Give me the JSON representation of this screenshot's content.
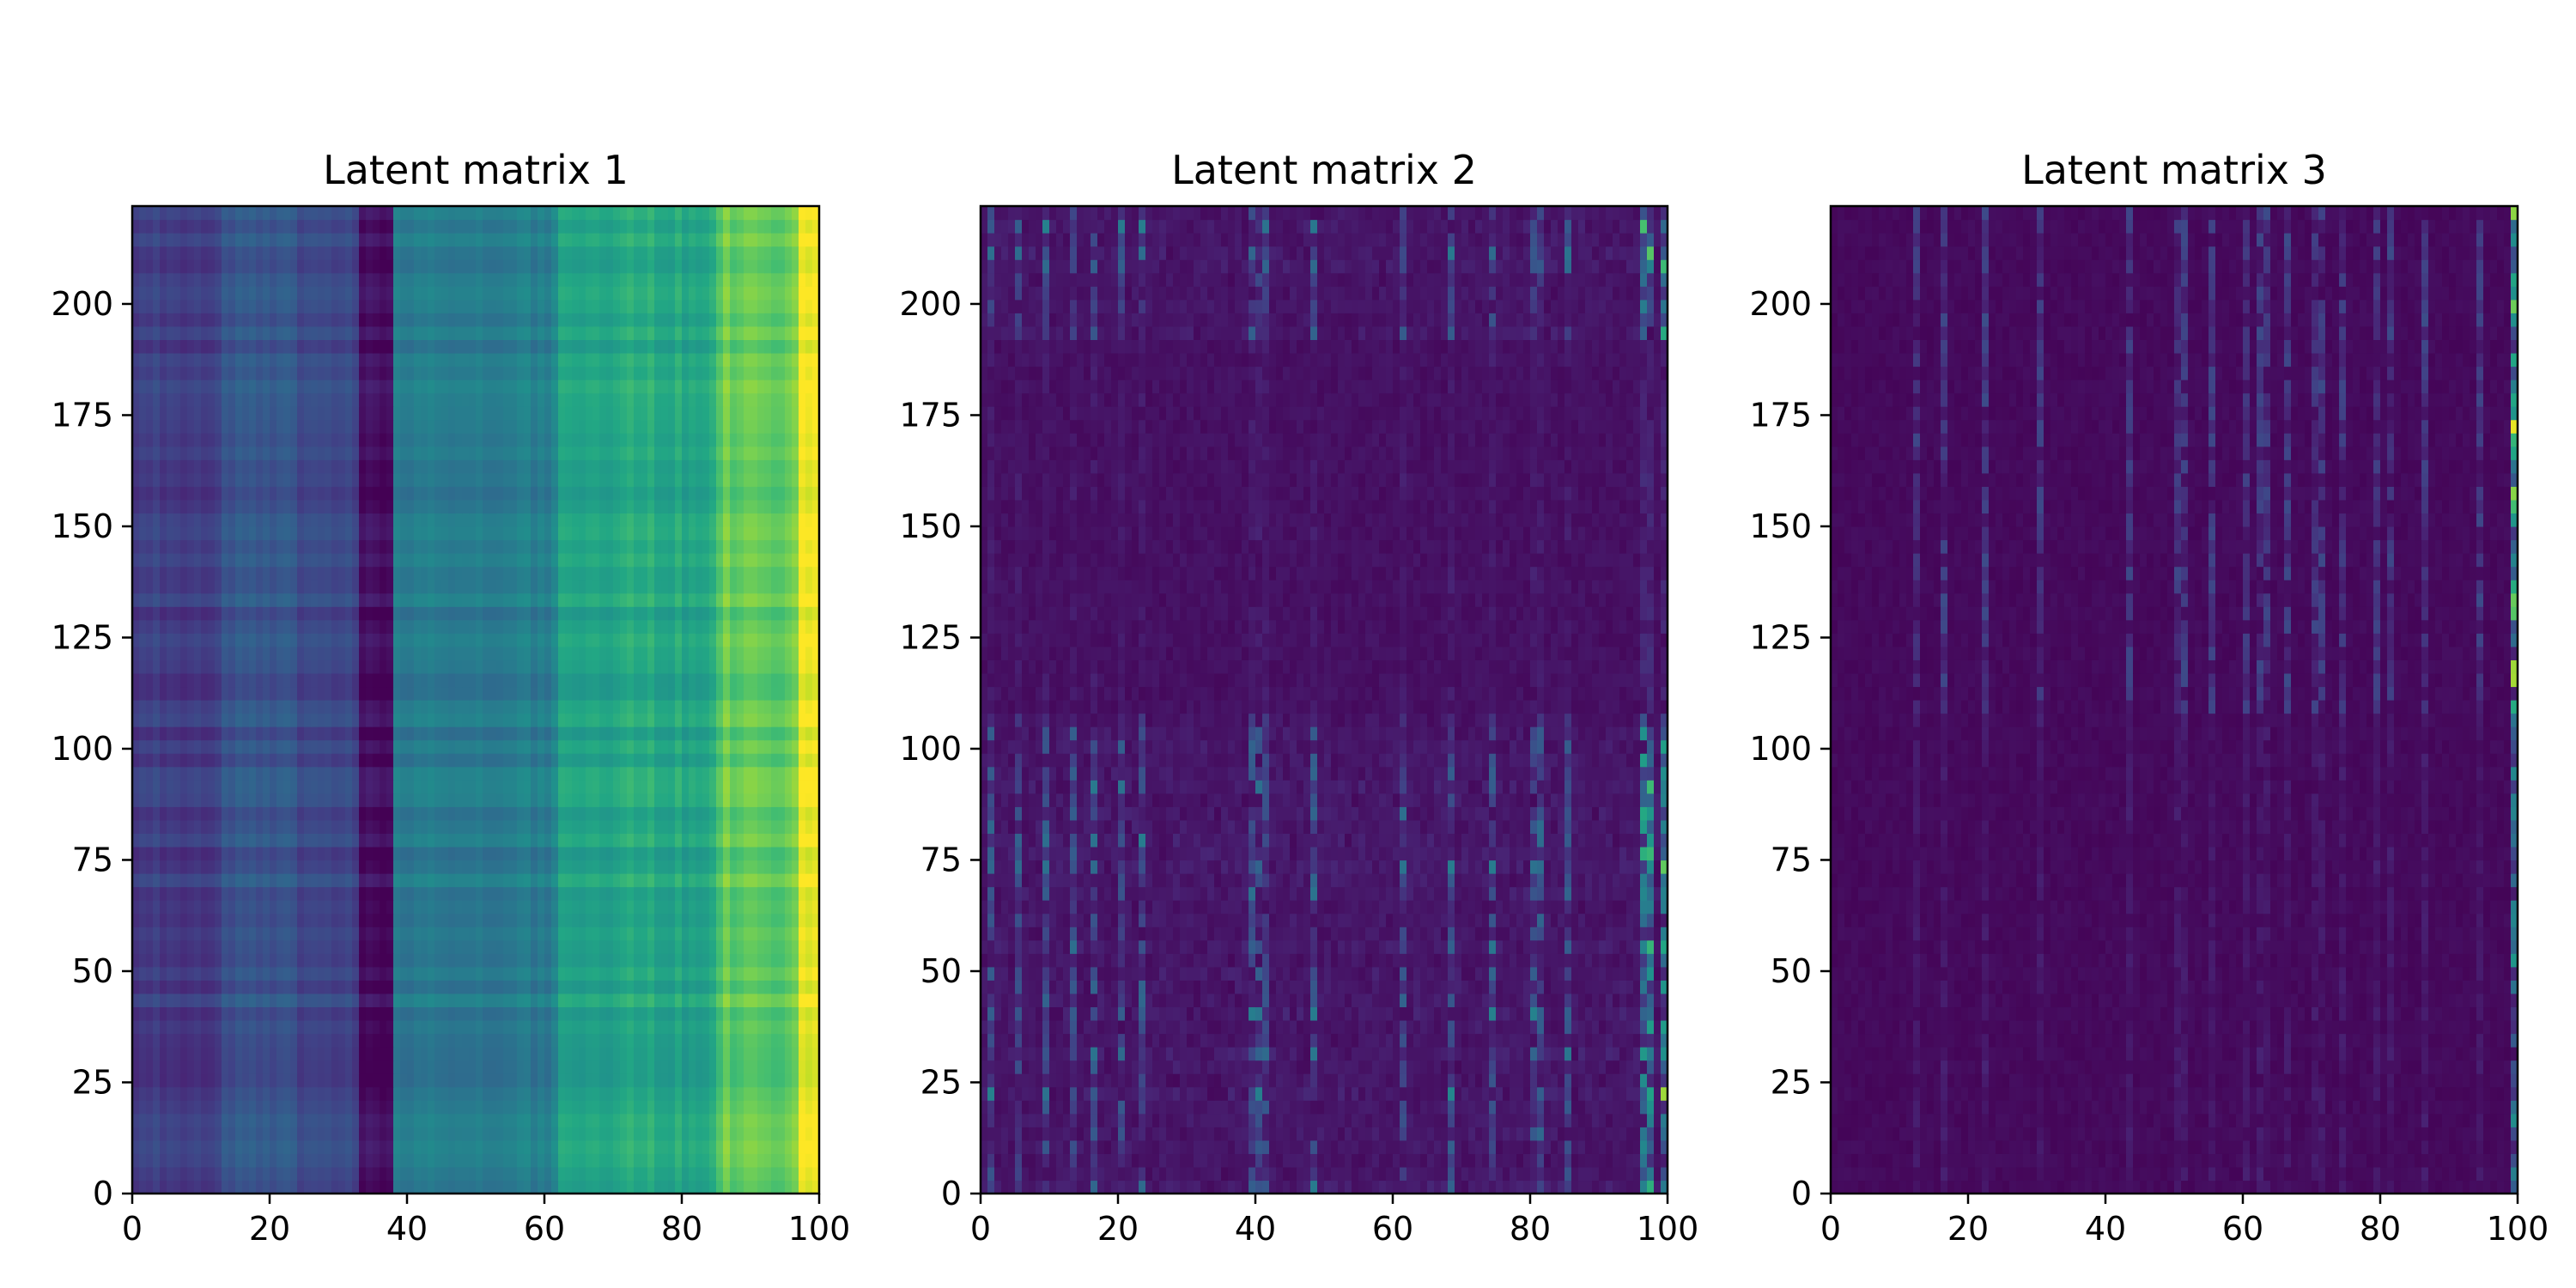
{
  "chart_data": [
    {
      "type": "heatmap",
      "title": "Latent matrix 1",
      "colormap": "viridis",
      "xlim": [
        0,
        100
      ],
      "ylim": [
        0,
        222
      ],
      "xticks": [
        0,
        20,
        40,
        60,
        80,
        100
      ],
      "yticks": [
        0,
        25,
        50,
        75,
        100,
        125,
        150,
        175,
        200
      ],
      "columns": 100,
      "rows": 222,
      "grid": false,
      "column_profile": [
        {
          "from": 0,
          "to": 13,
          "value": 0.18
        },
        {
          "from": 13,
          "to": 24,
          "value": 0.27
        },
        {
          "from": 24,
          "to": 33,
          "value": 0.22
        },
        {
          "from": 33,
          "to": 38,
          "value": 0.03
        },
        {
          "from": 38,
          "to": 62,
          "value": 0.42
        },
        {
          "from": 62,
          "to": 85,
          "value": 0.6
        },
        {
          "from": 85,
          "to": 97,
          "value": 0.76
        },
        {
          "from": 97,
          "to": 100,
          "value": 0.95
        }
      ]
    },
    {
      "type": "heatmap",
      "title": "Latent matrix 2",
      "colormap": "viridis",
      "xlim": [
        0,
        100
      ],
      "ylim": [
        0,
        222
      ],
      "xticks": [
        0,
        20,
        40,
        60,
        80,
        100
      ],
      "yticks": [
        0,
        25,
        50,
        75,
        100,
        125,
        150,
        175,
        200
      ],
      "columns": 100,
      "rows": 222,
      "grid": false,
      "bright_columns": [
        1,
        5,
        9,
        13,
        16,
        20,
        23,
        39,
        40,
        41,
        48,
        61,
        68,
        74,
        80,
        81,
        85,
        96,
        97,
        99
      ],
      "quiet_row_bands": [
        [
          107,
          190
        ]
      ]
    },
    {
      "type": "heatmap",
      "title": "Latent matrix 3",
      "colormap": "viridis",
      "xlim": [
        0,
        100
      ],
      "ylim": [
        0,
        222
      ],
      "xticks": [
        0,
        20,
        40,
        60,
        80,
        100
      ],
      "yticks": [
        0,
        25,
        50,
        75,
        100,
        125,
        150,
        175,
        200
      ],
      "columns": 100,
      "rows": 222,
      "grid": false,
      "bright_columns": [
        12,
        16,
        22,
        30,
        43,
        50,
        51,
        55,
        60,
        62,
        63,
        66,
        70,
        71,
        74,
        79,
        81,
        86,
        94,
        99
      ],
      "active_row_band": [
        108,
        222
      ]
    }
  ]
}
